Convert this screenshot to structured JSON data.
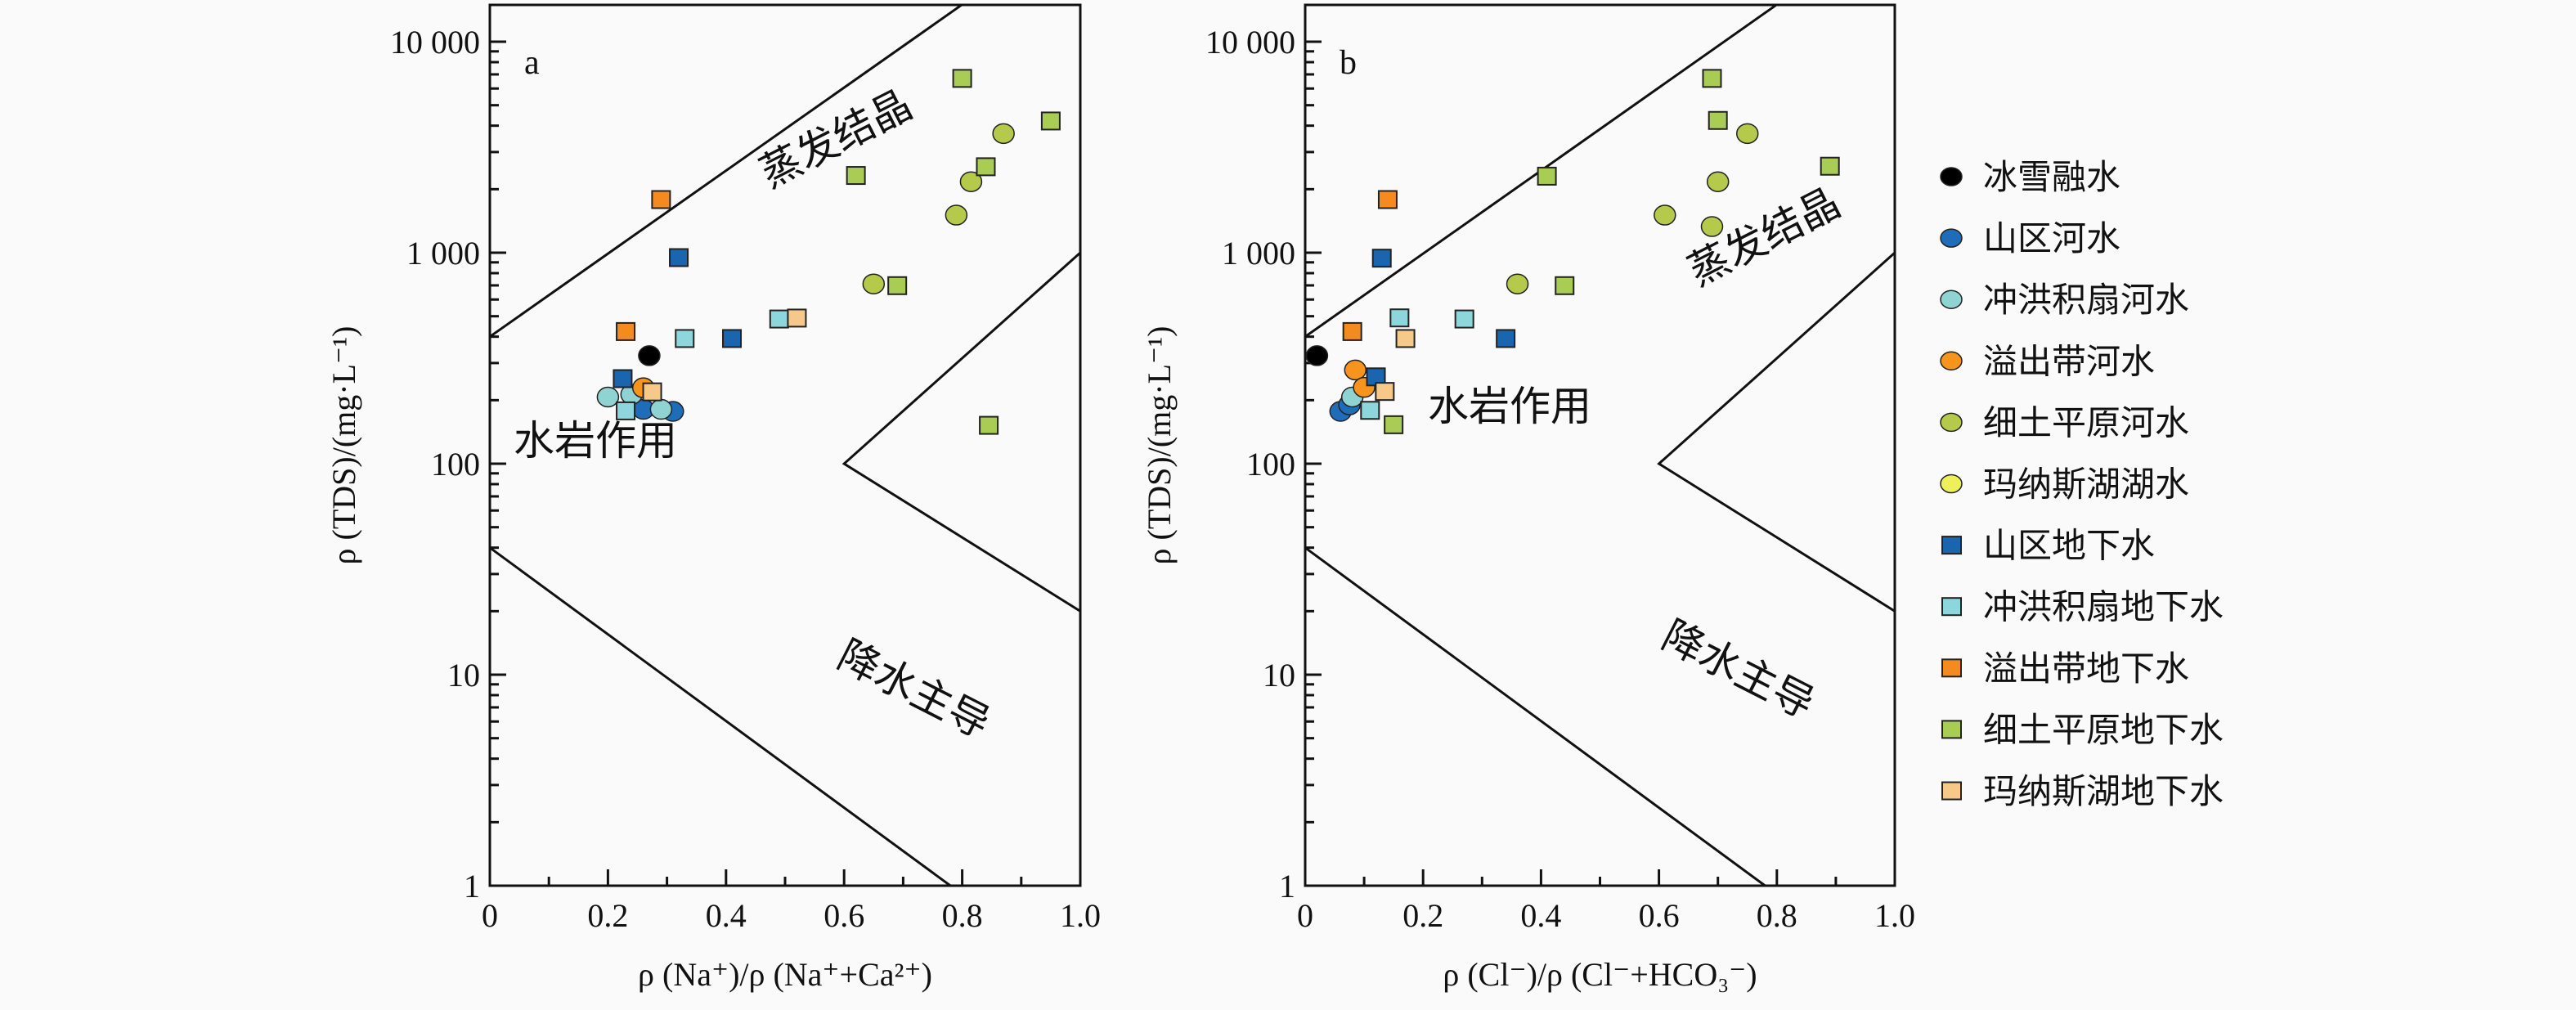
{
  "chart_data": {
    "type": "scatter",
    "y_scale": "log",
    "grid": false,
    "legend_placement": "right",
    "panels": [
      {
        "id": "a",
        "label": "a",
        "xlabel": "ρ (Na⁺)/ρ (Na⁺+Ca²⁺)",
        "ylabel": "ρ (TDS)/(mg·L⁻¹)",
        "xlim": [
          0,
          1.0
        ],
        "ylim": [
          1,
          10000
        ],
        "xticks": [
          "0",
          "0.2",
          "0.4",
          "0.6",
          "0.8",
          "1.0"
        ],
        "yticks": [
          "1",
          "10",
          "100",
          "1 000",
          "10 000"
        ],
        "regions": {
          "evaporation": "蒸发结晶",
          "rock": "水岩作用",
          "precipitation": "降水主导"
        }
      },
      {
        "id": "b",
        "label": "b",
        "xlabel": "ρ (Cl⁻)/ρ (Cl⁻+HCO₃⁻)",
        "ylabel": "ρ (TDS)/(mg·L⁻¹)",
        "xlim": [
          0,
          1.0
        ],
        "ylim": [
          1,
          10000
        ],
        "xticks": [
          "0",
          "0.2",
          "0.4",
          "0.6",
          "0.8",
          "1.0"
        ],
        "yticks": [
          "1",
          "10",
          "100",
          "1 000",
          "10 000"
        ],
        "regions": {
          "evaporation": "蒸发结晶",
          "rock": "水岩作用",
          "precipitation": "降水主导"
        }
      }
    ],
    "boundaries": {
      "upper": [
        [
          0,
          400
        ],
        [
          0.8,
          15000
        ]
      ],
      "wedge": [
        [
          1.0,
          1000
        ],
        [
          0.6,
          100
        ],
        [
          1.0,
          20
        ]
      ],
      "lower": [
        [
          0,
          40
        ],
        [
          0.78,
          1
        ]
      ]
    },
    "series": [
      {
        "name": "冰雪融水",
        "marker": "circle",
        "color": "#000000",
        "a": [
          [
            0.27,
            325
          ]
        ],
        "b": [
          [
            0.02,
            325
          ]
        ]
      },
      {
        "name": "山区河水",
        "marker": "circle",
        "color": "#1f6db8",
        "a": [
          [
            0.26,
            181
          ],
          [
            0.31,
            177
          ]
        ],
        "b": [
          [
            0.06,
            177
          ],
          [
            0.075,
            190
          ]
        ]
      },
      {
        "name": "冲洪积扇河水",
        "marker": "circle",
        "color": "#8fd3d3",
        "a": [
          [
            0.2,
            207
          ],
          [
            0.24,
            213
          ],
          [
            0.29,
            181
          ]
        ],
        "b": [
          [
            0.08,
            207
          ]
        ]
      },
      {
        "name": "溢出带河水",
        "marker": "circle",
        "color": "#f7941d",
        "a": [
          [
            0.26,
            229
          ]
        ],
        "b": [
          [
            0.085,
            278
          ],
          [
            0.1,
            230
          ]
        ]
      },
      {
        "name": "细土平原河水",
        "marker": "circle",
        "color": "#b5c94a",
        "a": [
          [
            0.65,
            711
          ],
          [
            0.87,
            3670
          ],
          [
            0.815,
            2170
          ],
          [
            0.79,
            1507
          ]
        ],
        "b": [
          [
            0.75,
            3670
          ],
          [
            0.7,
            2170
          ],
          [
            0.61,
            1507
          ],
          [
            0.69,
            1330
          ],
          [
            0.36,
            711
          ]
        ]
      },
      {
        "name": "玛纳斯湖湖水",
        "marker": "circle",
        "color": "#eef05a",
        "a": [],
        "b": []
      },
      {
        "name": "山区地下水",
        "marker": "square",
        "color": "#1b64ae",
        "a": [
          [
            0.32,
            948
          ],
          [
            0.41,
            392
          ],
          [
            0.225,
            253
          ]
        ],
        "b": [
          [
            0.13,
            942
          ],
          [
            0.34,
            392
          ],
          [
            0.12,
            258
          ]
        ]
      },
      {
        "name": "冲洪积扇地下水",
        "marker": "square",
        "color": "#8dd7dc",
        "a": [
          [
            0.33,
            392
          ],
          [
            0.49,
            485
          ],
          [
            0.23,
            178
          ]
        ],
        "b": [
          [
            0.16,
            491
          ],
          [
            0.27,
            485
          ],
          [
            0.11,
            179
          ]
        ]
      },
      {
        "name": "溢出带地下水",
        "marker": "square",
        "color": "#f58a1f",
        "a": [
          [
            0.29,
            1786
          ],
          [
            0.23,
            423
          ]
        ],
        "b": [
          [
            0.14,
            1786
          ],
          [
            0.08,
            423
          ]
        ]
      },
      {
        "name": "细土平原地下水",
        "marker": "square",
        "color": "#a9cc55",
        "a": [
          [
            0.62,
            2323
          ],
          [
            0.8,
            6700
          ],
          [
            0.95,
            4210
          ],
          [
            0.84,
            2555
          ],
          [
            0.69,
            698
          ],
          [
            0.845,
            152
          ]
        ],
        "b": [
          [
            0.69,
            6700
          ],
          [
            0.7,
            4235
          ],
          [
            0.89,
            2570
          ],
          [
            0.41,
            2305
          ],
          [
            0.44,
            698
          ],
          [
            0.15,
            153
          ]
        ]
      },
      {
        "name": "玛纳斯湖地下水",
        "marker": "square",
        "color": "#f6c98a",
        "a": [
          [
            0.52,
            490
          ],
          [
            0.275,
            219
          ]
        ],
        "b": [
          [
            0.17,
            392
          ],
          [
            0.135,
            220
          ]
        ]
      }
    ]
  }
}
